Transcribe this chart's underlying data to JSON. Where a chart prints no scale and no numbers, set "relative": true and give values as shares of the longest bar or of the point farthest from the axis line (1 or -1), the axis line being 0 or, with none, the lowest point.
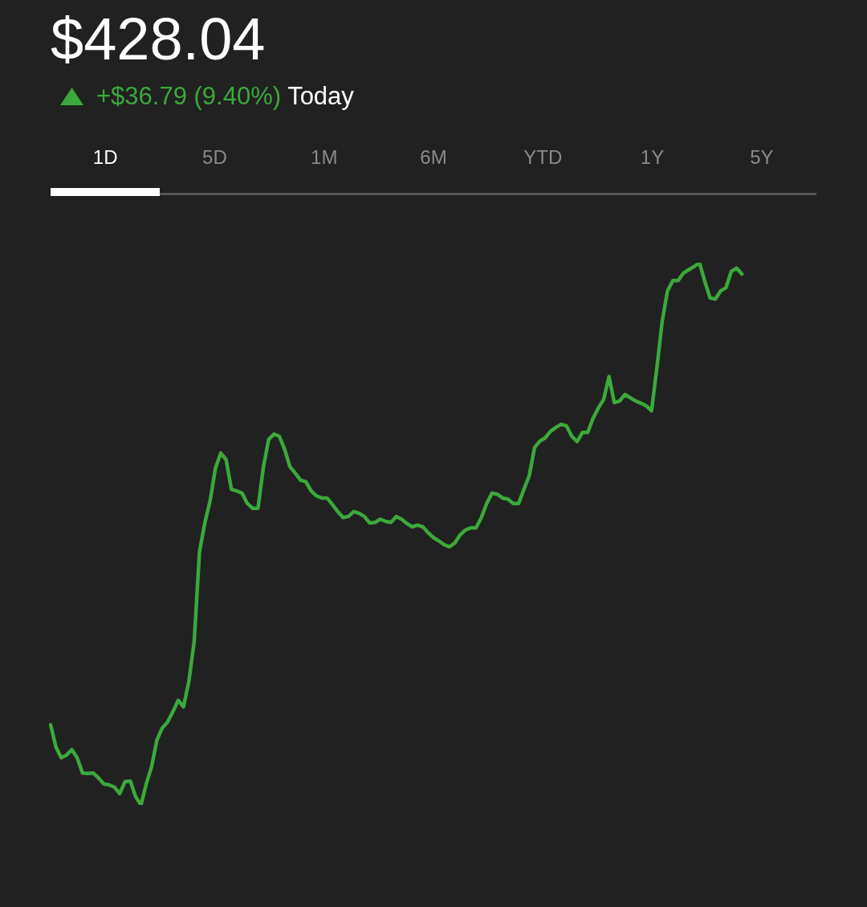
{
  "chart_data": {
    "type": "line",
    "title": "$428.04",
    "subtitle": "+$36.79 (9.40%) Today",
    "annotations": [
      "1D",
      "5D",
      "1M",
      "6M",
      "YTD",
      "1Y",
      "5Y"
    ],
    "relative": true,
    "marker": "none",
    "tick_labels": false,
    "categories": [
      null,
      null,
      null,
      null,
      null,
      null,
      null,
      null,
      null,
      null,
      null,
      null,
      null,
      null,
      null,
      null,
      null,
      null,
      null,
      null,
      null,
      null,
      null,
      null,
      null,
      null,
      null,
      null,
      null,
      null,
      null,
      null,
      null,
      null,
      null,
      null,
      null,
      null,
      null,
      null,
      null,
      null,
      null,
      null,
      null,
      null,
      null,
      null,
      null,
      null,
      null,
      null,
      null,
      null,
      null,
      null,
      null,
      null,
      null,
      null,
      null,
      null,
      null,
      null,
      null,
      null,
      null,
      null,
      null,
      null,
      null,
      null,
      null,
      null,
      null,
      null,
      null,
      null,
      null,
      null,
      null,
      null,
      null,
      null,
      null,
      null,
      null,
      null,
      null,
      null,
      null,
      null,
      null,
      null,
      null,
      null,
      null,
      null,
      null,
      null,
      null,
      null,
      null,
      null,
      null,
      null,
      null,
      null,
      null,
      null,
      null,
      null,
      null,
      null,
      null,
      null,
      null,
      null,
      null,
      null,
      null,
      null,
      null,
      null,
      null,
      null,
      null,
      null,
      null,
      null,
      null,
      null,
      null,
      null,
      null,
      null,
      null,
      null,
      null,
      null,
      null,
      null,
      null,
      null,
      null
    ],
    "series": [
      {
        "color": "#3ba93b",
        "values": [
          0.148,
          0.107,
          0.087,
          0.092,
          0.102,
          0.087,
          0.059,
          0.058,
          0.059,
          0.05,
          0.039,
          0.037,
          0.033,
          0.021,
          0.043,
          0.044,
          0.015,
          0,
          0.039,
          0.071,
          0.12,
          0.142,
          0.153,
          0.172,
          0.193,
          0.181,
          0.228,
          0.301,
          0.467,
          0.52,
          0.561,
          0.621,
          0.649,
          0.637,
          0.582,
          0.579,
          0.575,
          0.556,
          0.547,
          0.547,
          0.622,
          0.674,
          0.684,
          0.68,
          0.656,
          0.624,
          0.612,
          0.599,
          0.596,
          0.579,
          0.57,
          0.566,
          0.566,
          0.554,
          0.541,
          0.53,
          0.532,
          0.541,
          0.538,
          0.532,
          0.52,
          0.521,
          0.527,
          0.523,
          0.521,
          0.532,
          0.527,
          0.519,
          0.513,
          0.516,
          0.513,
          0.502,
          0.493,
          0.487,
          0.48,
          0.476,
          0.483,
          0.498,
          0.507,
          0.511,
          0.511,
          0.53,
          0.556,
          0.575,
          0.573,
          0.566,
          0.564,
          0.556,
          0.556,
          0.582,
          0.607,
          0.659,
          0.671,
          0.677,
          0.689,
          0.696,
          0.702,
          0.699,
          0.68,
          0.67,
          0.687,
          0.687,
          0.713,
          0.732,
          0.748,
          0.79,
          0.742,
          0.745,
          0.757,
          0.751,
          0.745,
          0.741,
          0.736,
          0.727,
          0.806,
          0.892,
          0.948,
          0.967,
          0.967,
          0.981,
          0.987,
          0.993,
          1,
          0.966,
          0.935,
          0.933,
          0.948,
          0.954,
          0.984,
          0.99,
          0.979,
          null,
          null,
          null,
          null,
          null,
          null,
          null,
          null,
          null,
          null,
          null,
          null,
          null,
          null
        ]
      }
    ]
  }
}
